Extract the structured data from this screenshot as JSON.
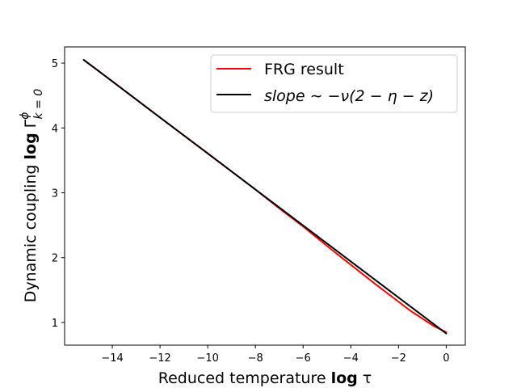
{
  "chart_data": {
    "type": "line",
    "xlabel_prefix": "Reduced temperature ",
    "xlabel_bold": "log",
    "xlabel_suffix": " τ",
    "ylabel_prefix": "Dynamic coupling ",
    "ylabel_bold": "log",
    "ylabel_symbol": "Γ",
    "ylabel_superscript": "ϕ",
    "ylabel_subscript": "k = 0",
    "xlim": [
      -16.0,
      0.8
    ],
    "ylim": [
      0.65,
      5.25
    ],
    "x_ticks": [
      -14,
      -12,
      -10,
      -8,
      -6,
      -4,
      -2,
      0
    ],
    "x_tick_labels": [
      "−14",
      "−12",
      "−10",
      "−8",
      "−6",
      "−4",
      "−2",
      "0"
    ],
    "y_ticks": [
      1,
      2,
      3,
      4,
      5
    ],
    "y_tick_labels": [
      "1",
      "2",
      "3",
      "4",
      "5"
    ],
    "grid": false,
    "legend_position": "top-right",
    "series": [
      {
        "name": "FRG result",
        "color": "#ff0000",
        "x": [
          -15.2,
          -14,
          -12,
          -10,
          -9,
          -8,
          -7,
          -6,
          -5,
          -4,
          -3,
          -2,
          -1.5,
          -1,
          -0.5,
          0
        ],
        "y": [
          5.05,
          4.72,
          4.16,
          3.61,
          3.33,
          3.05,
          2.76,
          2.48,
          2.18,
          1.89,
          1.6,
          1.32,
          1.18,
          1.06,
          0.94,
          0.85
        ]
      },
      {
        "name": "slope  ∼ −ν(2 − η − z)",
        "color": "#000000",
        "x": [
          -15.2,
          0
        ],
        "y": [
          5.05,
          0.83
        ]
      }
    ]
  }
}
